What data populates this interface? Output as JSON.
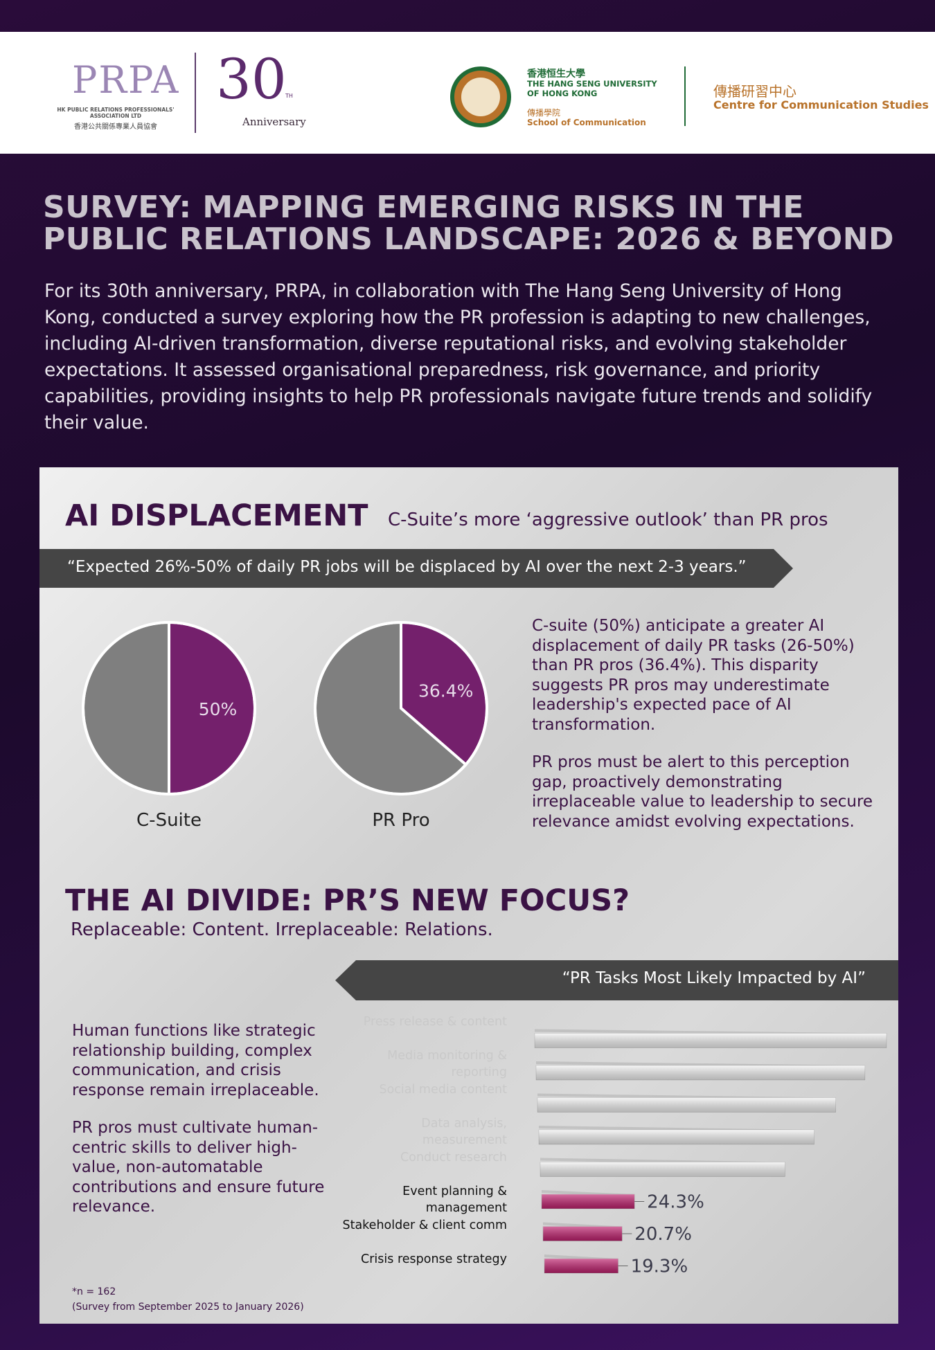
{
  "header": {
    "prpa_logo": "PRPA",
    "prpa_name": "HK PUBLIC RELATIONS PROFESSIONALS' ASSOCIATION LTD",
    "prpa_name_zh": "香港公共關係專業人員協會",
    "anniversary_number": "30",
    "anniversary_suffix": "TH",
    "anniversary_text": "Anniversary",
    "university_zh": "香港恒生大學",
    "university": "THE HANG SENG UNIVERSITY OF HONG KONG",
    "school_zh": "傳播學院",
    "school": "School of Communication",
    "centre_zh": "傳播研習中心",
    "centre": "Centre for Communication Studies"
  },
  "title_lines": [
    "SURVEY: MAPPING EMERGING RISKS IN THE",
    "PUBLIC RELATIONS LANDSCAPE: 2026 & BEYOND"
  ],
  "intro": "For its 30th anniversary, PRPA, in collaboration with The Hang Seng University of Hong Kong, conducted a survey exploring how the PR profession is adapting to new challenges, including AI-driven transformation, diverse reputational risks, and evolving stakeholder expectations. It assessed organisational preparedness, risk governance, and priority capabilities, providing insights to help PR professionals navigate future trends and solidify their value.",
  "section1": {
    "heading": "AI DISPLACEMENT",
    "subheading": "C-Suite’s more ‘aggressive outlook’ than PR pros",
    "quote": "“Expected 26%-50% of daily PR jobs will be displaced by AI over the next 2-3 years.”",
    "paragraphs": [
      "C-suite (50%) anticipate a greater AI displacement of daily PR tasks (26-50%) than PR pros (36.4%). This disparity suggests PR pros may underestimate leadership's expected pace of AI transformation.",
      "PR pros must be alert to this perception gap, proactively demonstrating irreplaceable value to leadership to secure relevance amidst evolving expectations."
    ]
  },
  "section2": {
    "heading": "THE AI DIVIDE: PR’S NEW FOCUS?",
    "subheading": "Replaceable: Content. Irreplaceable: Relations.",
    "paragraphs": [
      "Human functions like strategic relationship building, complex communication, and crisis response remain irreplaceable.",
      "PR pros must cultivate human-centric skills to deliver high-value, non-automatable contributions and ensure future relevance."
    ]
  },
  "footnote": [
    "*n = 162",
    "(Survey from September 2025 to January 2026)"
  ],
  "chart_data": [
    {
      "type": "pie",
      "label": "C-Suite",
      "values": [
        50,
        50
      ],
      "value_labels": [
        "50%",
        null
      ],
      "colors": [
        "#74206c",
        "#7f7f7f"
      ]
    },
    {
      "type": "pie",
      "label": "PR Pro",
      "values": [
        36.4,
        63.6
      ],
      "value_labels": [
        "36.4%",
        null
      ],
      "colors": [
        "#74206c",
        "#7f7f7f"
      ]
    },
    {
      "type": "bar",
      "orientation": "horizontal",
      "title": "“PR Tasks Most Likely Impacted by AI”",
      "categories": [
        "Press release & content",
        "Media monitoring & reporting",
        "Social media content",
        "Data analysis, measurement",
        "Conduct research",
        "Event planning & management",
        "Stakeholder & client comm",
        "Crisis response strategy"
      ],
      "values": [
        92,
        86,
        78,
        72,
        64,
        24.3,
        20.7,
        19.3
      ],
      "value_labels": [
        null,
        null,
        null,
        null,
        null,
        "24.3%",
        "20.7%",
        "19.3%"
      ],
      "colors": [
        "#f2f2f2",
        "#f2f2f2",
        "#f2f2f2",
        "#f2f2f2",
        "#f2f2f2",
        "#c0206e",
        "#c0206e",
        "#c0206e"
      ],
      "label_colors": [
        "#c9c9c9",
        "#c9c9c9",
        "#c9c9c9",
        "#c9c9c9",
        "#c9c9c9",
        "#111111",
        "#111111",
        "#111111"
      ]
    }
  ]
}
